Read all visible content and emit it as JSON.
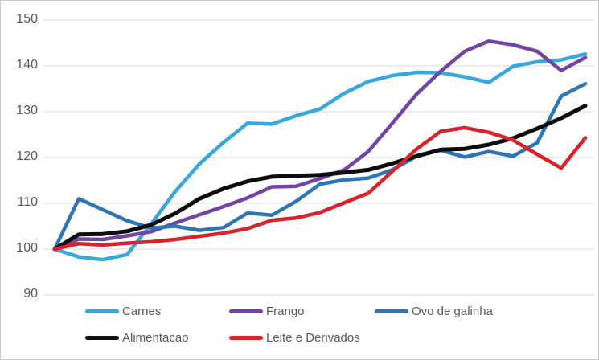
{
  "chart_data": {
    "type": "line",
    "title": "",
    "xlabel": "",
    "ylabel": "",
    "x_labels_visible": false,
    "n_points": 23,
    "ylim": [
      90,
      150
    ],
    "yticks": [
      150,
      140,
      130,
      120,
      110,
      100,
      90
    ],
    "grid": "horizontal",
    "gridline_color": "#d9d9d9",
    "axis_label_color": "#595959",
    "legend_position": "bottom-inside",
    "series": [
      {
        "name": "Carnes",
        "color": "#38a8dc",
        "stroke_width": 4.5,
        "values": [
          100,
          98.3,
          97.7,
          98.8,
          105.5,
          112.6,
          118.6,
          123.3,
          127.5,
          127.3,
          129.1,
          130.6,
          134.0,
          136.6,
          137.9,
          138.6,
          138.5,
          137.6,
          136.4,
          139.9,
          140.9,
          141.3,
          142.6
        ]
      },
      {
        "name": "Frango",
        "color": "#7245a5",
        "stroke_width": 4.5,
        "values": [
          100,
          102.2,
          102.1,
          102.9,
          103.8,
          105.7,
          107.5,
          109.3,
          111.2,
          113.6,
          113.7,
          115.4,
          117.3,
          121.3,
          127.5,
          133.8,
          138.8,
          143.2,
          145.4,
          144.6,
          143.2,
          139.0,
          141.8
        ]
      },
      {
        "name": "Ovo de galinha",
        "color": "#2e75b6",
        "stroke_width": 4.5,
        "values": [
          100,
          111.0,
          108.6,
          106.2,
          104.6,
          105.0,
          104.1,
          104.7,
          107.9,
          107.4,
          110.4,
          114.2,
          115.1,
          115.5,
          117.3,
          120.3,
          121.6,
          120.1,
          121.3,
          120.3,
          123.2,
          133.4,
          136.1
        ]
      },
      {
        "name": "Alimentacao",
        "color": "#0d0d0d",
        "stroke_width": 5,
        "values": [
          100,
          103.2,
          103.3,
          103.9,
          105.3,
          107.8,
          111.0,
          113.2,
          114.8,
          115.8,
          116.0,
          116.2,
          116.7,
          117.3,
          118.7,
          120.3,
          121.7,
          121.9,
          122.8,
          124.2,
          126.3,
          128.6,
          131.3
        ]
      },
      {
        "name": "Leite e Derivados",
        "color": "#d8232a",
        "stroke_width": 4.5,
        "values": [
          100,
          101.2,
          100.9,
          101.3,
          101.6,
          102.1,
          102.8,
          103.5,
          104.5,
          106.3,
          106.8,
          108.0,
          110.1,
          112.2,
          117.0,
          121.8,
          125.7,
          126.5,
          125.5,
          123.8,
          120.7,
          117.7,
          124.3
        ]
      }
    ]
  },
  "legend": {
    "rows": [
      [
        {
          "label": "Carnes",
          "color": "#38a8dc"
        },
        {
          "label": "Frango",
          "color": "#7245a5"
        },
        {
          "label": "Ovo de galinha",
          "color": "#2e75b6"
        }
      ],
      [
        {
          "label": "Alimentacao",
          "color": "#0d0d0d"
        },
        {
          "label": "Leite e Derivados",
          "color": "#d8232a"
        }
      ]
    ]
  }
}
